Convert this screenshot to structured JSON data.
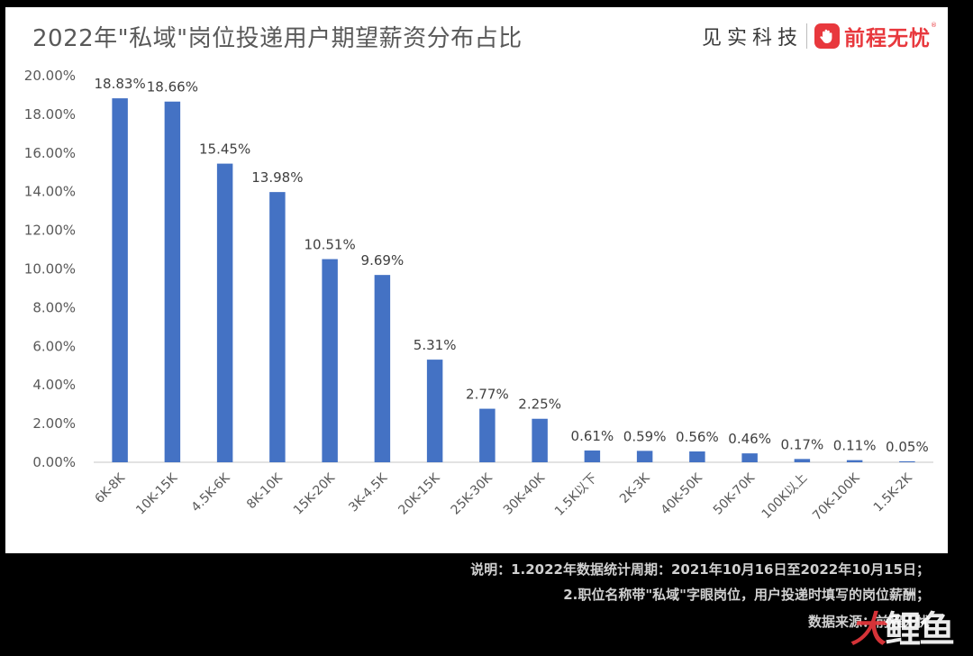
{
  "header": {
    "title": "2022年\"私域\"岗位投递用户期望薪资分布占比",
    "brand_jsk": "见实科技",
    "brand_51job": "前程无忧",
    "brand_reg": "®"
  },
  "notes": {
    "line1": "说明：1.2022年数据统计周期：2021年10月16日至2022年10月15日；",
    "line2": "2.职位名称带\"私域\"字眼岗位，用户投递时填写的岗位薪酬；",
    "source": "数据来源：前程无忧"
  },
  "watermark": {
    "part1": "大",
    "part2": "鲤鱼"
  },
  "colors": {
    "bar": "#4472c4",
    "axis": "#d9d9d9",
    "text": "#595959",
    "label": "#404040"
  },
  "chart_data": {
    "type": "bar",
    "title": "2022年\"私域\"岗位投递用户期望薪资分布占比",
    "xlabel": "",
    "ylabel": "",
    "categories": [
      "6K-8K",
      "10K-15K",
      "4.5K-6K",
      "8K-10K",
      "15K-20K",
      "3K-4.5K",
      "20K-15K",
      "25K-30K",
      "30K-40K",
      "1.5K以下",
      "2K-3K",
      "40K-50K",
      "50K-70K",
      "100K以上",
      "70K-100K",
      "1.5K-2K"
    ],
    "values": [
      18.83,
      18.66,
      15.45,
      13.98,
      10.51,
      9.69,
      5.31,
      2.77,
      2.25,
      0.61,
      0.59,
      0.56,
      0.46,
      0.17,
      0.11,
      0.05
    ],
    "data_labels": [
      "18.83%",
      "18.66%",
      "15.45%",
      "13.98%",
      "10.51%",
      "9.69%",
      "5.31%",
      "2.77%",
      "2.25%",
      "0.61%",
      "0.59%",
      "0.56%",
      "0.46%",
      "0.17%",
      "0.11%",
      "0.05%"
    ],
    "ylim": [
      0,
      20
    ],
    "yticks": [
      "0.00%",
      "2.00%",
      "4.00%",
      "6.00%",
      "8.00%",
      "10.00%",
      "12.00%",
      "14.00%",
      "16.00%",
      "18.00%",
      "20.00%"
    ],
    "grid": false,
    "legend": "none"
  }
}
